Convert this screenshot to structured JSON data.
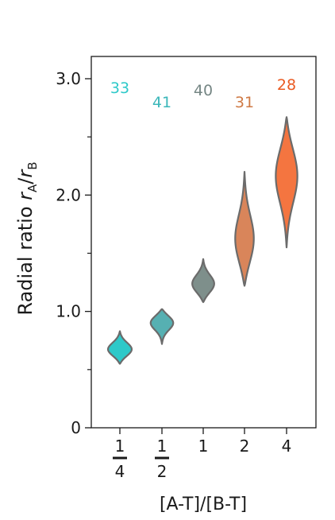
{
  "chart_data": {
    "type": "violin",
    "ylabel_main": "Radial ratio ",
    "ylabel_rA_base": "r",
    "ylabel_rA_sub": "A",
    "ylabel_slash": "/",
    "ylabel_rB_base": "r",
    "ylabel_rB_sub": "B",
    "xlabel": "[A-T]/[B-T]",
    "ylim": [
      0,
      3.2
    ],
    "yticks": [
      {
        "value": 0,
        "label": "0"
      },
      {
        "value": 1.0,
        "label": "1.0"
      },
      {
        "value": 2.0,
        "label": "2.0"
      },
      {
        "value": 3.0,
        "label": "3.0"
      }
    ],
    "yminor_ticks": [
      0.5,
      1.5,
      2.5
    ],
    "categories": [
      {
        "num": "1",
        "den": "4",
        "label": "1/4"
      },
      {
        "num": "1",
        "den": "2",
        "label": "1/2"
      },
      {
        "num": "",
        "den": "",
        "label": "1"
      },
      {
        "num": "",
        "den": "",
        "label": "2"
      },
      {
        "num": "",
        "den": "",
        "label": "4"
      }
    ],
    "series": [
      {
        "category": "1/4",
        "n": "33",
        "color": "#2ec9c9",
        "text_color": "#2ec9c9",
        "min": 0.55,
        "max": 0.83,
        "median": 0.67,
        "peak_width": 0.8,
        "peak_at": 0.67
      },
      {
        "category": "1/2",
        "n": "41",
        "color": "#56b0b2",
        "text_color": "#3bb7ba",
        "min": 0.72,
        "max": 1.02,
        "median": 0.9,
        "peak_width": 0.78,
        "peak_at": 0.91
      },
      {
        "category": "1",
        "n": "40",
        "color": "#7e8f8b",
        "text_color": "#758684",
        "min": 1.08,
        "max": 1.45,
        "median": 1.23,
        "peak_width": 0.74,
        "peak_at": 1.23
      },
      {
        "category": "2",
        "n": "31",
        "color": "#d9855a",
        "text_color": "#cf7a45",
        "min": 1.22,
        "max": 2.2,
        "median": 1.62,
        "peak_width": 0.62,
        "peak_at": 1.6
      },
      {
        "category": "4",
        "n": "28",
        "color": "#f47540",
        "text_color": "#ea5a22",
        "min": 1.55,
        "max": 2.67,
        "median": 2.2,
        "peak_width": 0.72,
        "peak_at": 2.18
      }
    ],
    "grid": false,
    "legend": "none"
  },
  "colors": {
    "axis": "#1a1a1a",
    "violin_outline": "#6b6b6b"
  }
}
